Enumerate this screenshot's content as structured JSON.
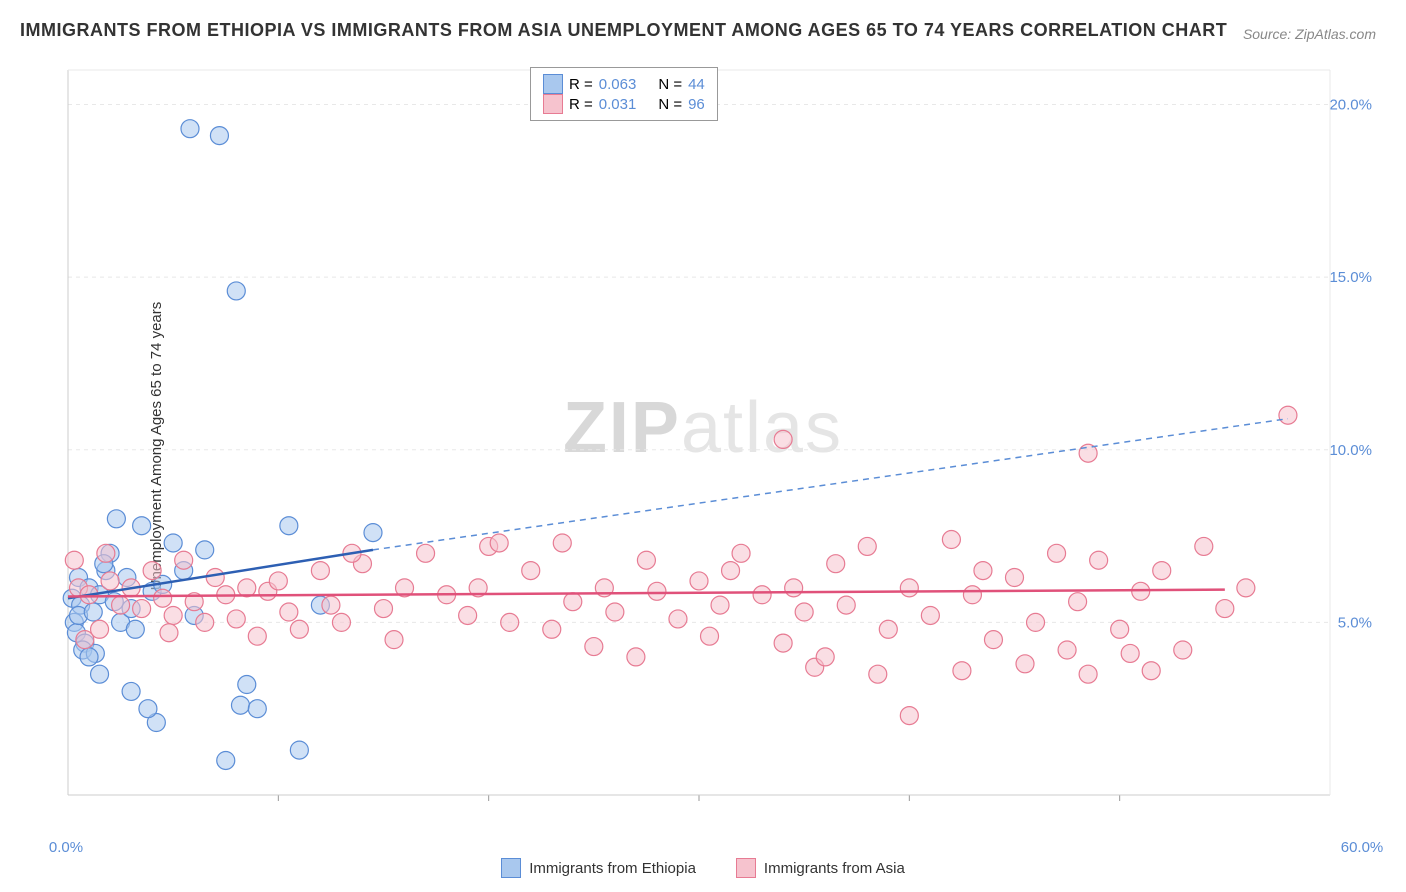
{
  "title": "IMMIGRANTS FROM ETHIOPIA VS IMMIGRANTS FROM ASIA UNEMPLOYMENT AMONG AGES 65 TO 74 YEARS CORRELATION CHART",
  "source_label": "Source: ZipAtlas.com",
  "watermark_a": "ZIP",
  "watermark_b": "atlas",
  "y_axis_label": "Unemployment Among Ages 65 to 74 years",
  "chart": {
    "type": "scatter",
    "x_domain": [
      0,
      60
    ],
    "y_domain": [
      0,
      21
    ],
    "x_ticks": [
      10,
      20,
      30,
      40,
      50
    ],
    "x_tick_labels_visible": [
      "0.0%",
      "60.0%"
    ],
    "y_ticks": [
      5,
      10,
      15,
      20
    ],
    "y_tick_labels": [
      "5.0%",
      "10.0%",
      "15.0%",
      "20.0%"
    ],
    "grid_color": "#e8e8e8",
    "axis_color": "#cccccc",
    "background_color": "#ffffff",
    "marker_radius": 9,
    "marker_opacity": 0.55,
    "marker_stroke_width": 1.2,
    "series": [
      {
        "name": "Immigrants from Ethiopia",
        "color_fill": "#a9c8ee",
        "color_stroke": "#5b8dd6",
        "r_value": "0.063",
        "n_value": "44",
        "trend": {
          "x1": 0,
          "y1": 5.7,
          "x2": 14.5,
          "y2": 7.1,
          "color": "#2d5fb3",
          "width": 2.5
        },
        "trend_ext": {
          "x1": 14.5,
          "y1": 7.1,
          "x2": 58,
          "y2": 10.9,
          "color": "#5b8dd6",
          "width": 1.5,
          "dash": "6,5"
        },
        "points": [
          [
            0.2,
            5.7
          ],
          [
            0.5,
            6.3
          ],
          [
            0.3,
            5.0
          ],
          [
            0.4,
            4.7
          ],
          [
            0.6,
            5.5
          ],
          [
            0.8,
            4.4
          ],
          [
            0.5,
            5.2
          ],
          [
            1.0,
            6.0
          ],
          [
            1.2,
            5.3
          ],
          [
            0.7,
            4.2
          ],
          [
            1.5,
            5.8
          ],
          [
            1.8,
            6.5
          ],
          [
            2.0,
            7.0
          ],
          [
            1.3,
            4.1
          ],
          [
            2.2,
            5.6
          ],
          [
            2.5,
            5.0
          ],
          [
            1.7,
            6.7
          ],
          [
            2.8,
            6.3
          ],
          [
            3.0,
            5.4
          ],
          [
            1.0,
            4.0
          ],
          [
            3.2,
            4.8
          ],
          [
            3.5,
            7.8
          ],
          [
            2.3,
            8.0
          ],
          [
            4.0,
            5.9
          ],
          [
            4.5,
            6.1
          ],
          [
            1.5,
            3.5
          ],
          [
            5.0,
            7.3
          ],
          [
            5.5,
            6.5
          ],
          [
            3.0,
            3.0
          ],
          [
            6.0,
            5.2
          ],
          [
            6.5,
            7.1
          ],
          [
            7.5,
            1.0
          ],
          [
            8.2,
            2.6
          ],
          [
            8.5,
            3.2
          ],
          [
            9.0,
            2.5
          ],
          [
            10.5,
            7.8
          ],
          [
            11.0,
            1.3
          ],
          [
            12.0,
            5.5
          ],
          [
            14.5,
            7.6
          ],
          [
            5.8,
            19.3
          ],
          [
            8.0,
            14.6
          ],
          [
            7.2,
            19.1
          ],
          [
            4.2,
            2.1
          ],
          [
            3.8,
            2.5
          ]
        ]
      },
      {
        "name": "Immigrants from Asia",
        "color_fill": "#f6c3ce",
        "color_stroke": "#e77b93",
        "r_value": "0.031",
        "n_value": "96",
        "trend": {
          "x1": 0,
          "y1": 5.75,
          "x2": 55,
          "y2": 5.95,
          "color": "#e0517a",
          "width": 2.5
        },
        "points": [
          [
            0.3,
            6.8
          ],
          [
            0.5,
            6.0
          ],
          [
            1.0,
            5.8
          ],
          [
            1.5,
            4.8
          ],
          [
            2.0,
            6.2
          ],
          [
            2.5,
            5.5
          ],
          [
            3.0,
            6.0
          ],
          [
            3.5,
            5.4
          ],
          [
            4.0,
            6.5
          ],
          [
            4.5,
            5.7
          ],
          [
            5.0,
            5.2
          ],
          [
            5.5,
            6.8
          ],
          [
            6.0,
            5.6
          ],
          [
            6.5,
            5.0
          ],
          [
            7.0,
            6.3
          ],
          [
            7.5,
            5.8
          ],
          [
            8.0,
            5.1
          ],
          [
            8.5,
            6.0
          ],
          [
            9.0,
            4.6
          ],
          [
            9.5,
            5.9
          ],
          [
            10.0,
            6.2
          ],
          [
            10.5,
            5.3
          ],
          [
            11.0,
            4.8
          ],
          [
            12.0,
            6.5
          ],
          [
            12.5,
            5.5
          ],
          [
            13.0,
            5.0
          ],
          [
            14.0,
            6.7
          ],
          [
            15.0,
            5.4
          ],
          [
            15.5,
            4.5
          ],
          [
            16.0,
            6.0
          ],
          [
            17.0,
            7.0
          ],
          [
            18.0,
            5.8
          ],
          [
            19.0,
            5.2
          ],
          [
            20.0,
            7.2
          ],
          [
            20.5,
            7.3
          ],
          [
            21.0,
            5.0
          ],
          [
            22.0,
            6.5
          ],
          [
            23.0,
            4.8
          ],
          [
            23.5,
            7.3
          ],
          [
            24.0,
            5.6
          ],
          [
            25.0,
            4.3
          ],
          [
            25.5,
            6.0
          ],
          [
            26.0,
            5.3
          ],
          [
            27.0,
            4.0
          ],
          [
            27.5,
            6.8
          ],
          [
            28.0,
            5.9
          ],
          [
            29.0,
            5.1
          ],
          [
            30.0,
            6.2
          ],
          [
            30.5,
            4.6
          ],
          [
            31.0,
            5.5
          ],
          [
            32.0,
            7.0
          ],
          [
            33.0,
            5.8
          ],
          [
            34.0,
            4.4
          ],
          [
            34.5,
            6.0
          ],
          [
            35.0,
            5.3
          ],
          [
            35.5,
            3.7
          ],
          [
            36.0,
            4.0
          ],
          [
            36.5,
            6.7
          ],
          [
            37.0,
            5.5
          ],
          [
            38.0,
            7.2
          ],
          [
            38.5,
            3.5
          ],
          [
            39.0,
            4.8
          ],
          [
            40.0,
            6.0
          ],
          [
            40.0,
            2.3
          ],
          [
            41.0,
            5.2
          ],
          [
            42.0,
            7.4
          ],
          [
            42.5,
            3.6
          ],
          [
            43.0,
            5.8
          ],
          [
            44.0,
            4.5
          ],
          [
            45.0,
            6.3
          ],
          [
            45.5,
            3.8
          ],
          [
            46.0,
            5.0
          ],
          [
            47.0,
            7.0
          ],
          [
            47.5,
            4.2
          ],
          [
            48.0,
            5.6
          ],
          [
            48.5,
            3.5
          ],
          [
            49.0,
            6.8
          ],
          [
            50.0,
            4.8
          ],
          [
            50.5,
            4.1
          ],
          [
            51.0,
            5.9
          ],
          [
            51.5,
            3.6
          ],
          [
            52.0,
            6.5
          ],
          [
            53.0,
            4.2
          ],
          [
            54.0,
            7.2
          ],
          [
            55.0,
            5.4
          ],
          [
            56.0,
            6.0
          ],
          [
            34.0,
            10.3
          ],
          [
            48.5,
            9.9
          ],
          [
            58.0,
            11.0
          ],
          [
            0.8,
            4.5
          ],
          [
            1.8,
            7.0
          ],
          [
            4.8,
            4.7
          ],
          [
            13.5,
            7.0
          ],
          [
            19.5,
            6.0
          ],
          [
            31.5,
            6.5
          ],
          [
            43.5,
            6.5
          ]
        ]
      }
    ]
  },
  "stats_legend": {
    "r_label": "R =",
    "n_label": "N =",
    "value_color": "#5b8dd6",
    "label_color": "#333333"
  },
  "bottom_legend": {
    "series_a": "Immigrants from Ethiopia",
    "series_b": "Immigrants from Asia"
  }
}
